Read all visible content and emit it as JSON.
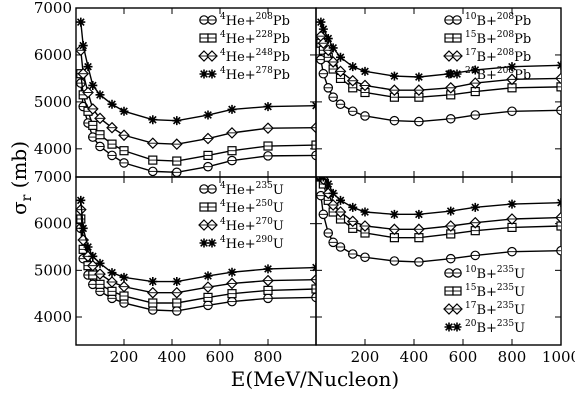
{
  "chart_data": [
    {
      "panel": "top-left",
      "type": "line",
      "x": [
        20,
        30,
        50,
        70,
        100,
        150,
        200,
        320,
        420,
        550,
        650,
        800,
        1000
      ],
      "xlim": [
        0,
        1000
      ],
      "ylim": [
        3400,
        7000
      ],
      "yticks": [
        "4000",
        "5000",
        "6000",
        "7000"
      ],
      "legend_position": "top-right",
      "series": [
        {
          "name": "4He+208Pb",
          "base": "He+",
          "pre": "4",
          "post": "208",
          "elem": "Pb",
          "marker": "circle",
          "values": [
            5400,
            4900,
            4550,
            4250,
            4050,
            3860,
            3700,
            3520,
            3500,
            3620,
            3750,
            3850,
            3860
          ]
        },
        {
          "name": "4He+228Pb",
          "base": "He+",
          "pre": "4",
          "post": "228",
          "elem": "Pb",
          "marker": "square",
          "values": [
            5600,
            5150,
            4800,
            4500,
            4300,
            4100,
            3960,
            3760,
            3740,
            3860,
            3960,
            4060,
            4080
          ]
        },
        {
          "name": "4He+248Pb",
          "base": "He+",
          "pre": "4",
          "post": "248",
          "elem": "Pb",
          "marker": "diamond",
          "values": [
            6100,
            5600,
            5200,
            4850,
            4650,
            4450,
            4290,
            4120,
            4100,
            4220,
            4340,
            4440,
            4450
          ]
        },
        {
          "name": "4He+278Pb",
          "base": "He+",
          "pre": "4",
          "post": "278",
          "elem": "Pb",
          "marker": "star",
          "values": [
            6700,
            6200,
            5750,
            5350,
            5150,
            4950,
            4800,
            4620,
            4600,
            4720,
            4840,
            4900,
            4920
          ]
        }
      ]
    },
    {
      "panel": "top-right",
      "type": "line",
      "x": [
        20,
        30,
        50,
        70,
        100,
        150,
        200,
        320,
        420,
        550,
        650,
        800,
        1000
      ],
      "xlim": [
        0,
        1000
      ],
      "ylim": [
        3400,
        7000
      ],
      "yticks": [
        "4000",
        "5000",
        "6000",
        "7000"
      ],
      "legend_position": "top-right",
      "series": [
        {
          "name": "10B+208Pb",
          "base": "B+",
          "pre": "10",
          "post": "208",
          "elem": "Pb",
          "marker": "circle",
          "values": [
            5900,
            5600,
            5300,
            5100,
            4950,
            4800,
            4700,
            4600,
            4580,
            4640,
            4720,
            4800,
            4820
          ]
        },
        {
          "name": "15B+208Pb",
          "base": "B+",
          "pre": "15",
          "post": "208",
          "elem": "Pb",
          "marker": "square",
          "values": [
            6250,
            6100,
            5950,
            5700,
            5500,
            5300,
            5200,
            5100,
            5100,
            5150,
            5220,
            5300,
            5320
          ]
        },
        {
          "name": "17B+208Pb",
          "base": "B+",
          "pre": "17",
          "post": "208",
          "elem": "Pb",
          "marker": "diamond",
          "values": [
            6400,
            6250,
            6100,
            5850,
            5650,
            5450,
            5350,
            5250,
            5250,
            5300,
            5400,
            5480,
            5500
          ]
        },
        {
          "name": "20B+208Pb",
          "base": "B+",
          "pre": "20",
          "post": "208",
          "elem": "Pb",
          "marker": "star",
          "values": [
            6700,
            6550,
            6350,
            6150,
            5950,
            5750,
            5650,
            5550,
            5530,
            5600,
            5680,
            5750,
            5780
          ]
        }
      ]
    },
    {
      "panel": "bottom-left",
      "type": "line",
      "x": [
        20,
        30,
        50,
        70,
        100,
        150,
        200,
        320,
        420,
        550,
        650,
        800,
        1000
      ],
      "xlim": [
        0,
        1000
      ],
      "ylim": [
        3400,
        7000
      ],
      "xticks": [
        "200",
        "400",
        "600",
        "800"
      ],
      "yticks": [
        "4000",
        "5000",
        "6000",
        "7000"
      ],
      "legend_position": "top-right",
      "series": [
        {
          "name": "4He+235U",
          "base": "He+",
          "pre": "4",
          "post": "235",
          "elem": "U",
          "marker": "circle",
          "values": [
            5900,
            5250,
            4900,
            4700,
            4550,
            4400,
            4300,
            4150,
            4130,
            4250,
            4330,
            4400,
            4420
          ]
        },
        {
          "name": "4He+250U",
          "base": "He+",
          "pre": "4",
          "post": "250",
          "elem": "U",
          "marker": "square",
          "values": [
            6100,
            5450,
            5100,
            4900,
            4700,
            4550,
            4450,
            4300,
            4300,
            4420,
            4500,
            4570,
            4600
          ]
        },
        {
          "name": "4He+270U",
          "base": "He+",
          "pre": "4",
          "post": "270",
          "elem": "U",
          "marker": "diamond",
          "values": [
            6300,
            5650,
            5300,
            5100,
            4920,
            4750,
            4650,
            4520,
            4520,
            4640,
            4720,
            4780,
            4800
          ]
        },
        {
          "name": "4He+290U",
          "base": "He+",
          "pre": "4",
          "post": "290",
          "elem": "U",
          "marker": "star",
          "values": [
            6500,
            5900,
            5500,
            5300,
            5150,
            4950,
            4850,
            4760,
            4760,
            4880,
            4960,
            5030,
            5060
          ]
        }
      ]
    },
    {
      "panel": "bottom-right",
      "type": "line",
      "x": [
        20,
        30,
        50,
        70,
        100,
        150,
        200,
        320,
        420,
        550,
        650,
        800,
        1000
      ],
      "xlim": [
        0,
        1000
      ],
      "ylim": [
        3400,
        7000
      ],
      "xticks": [
        "200",
        "400",
        "600",
        "800",
        "1000"
      ],
      "yticks": [
        "4000",
        "5000",
        "6000",
        "7000"
      ],
      "legend_position": "bottom-right",
      "series": [
        {
          "name": "10B+235U",
          "base": "B+",
          "pre": "10",
          "post": "235",
          "elem": "U",
          "marker": "circle",
          "values": [
            6600,
            6200,
            5800,
            5600,
            5500,
            5350,
            5280,
            5200,
            5180,
            5250,
            5320,
            5400,
            5420
          ]
        },
        {
          "name": "15B+235U",
          "base": "B+",
          "pre": "15",
          "post": "235",
          "elem": "U",
          "marker": "square",
          "values": [
            7000,
            6850,
            6500,
            6250,
            6100,
            5900,
            5800,
            5700,
            5700,
            5780,
            5850,
            5920,
            5950
          ]
        },
        {
          "name": "17B+235U",
          "base": "B+",
          "pre": "17",
          "post": "235",
          "elem": "U",
          "marker": "diamond",
          "values": [
            7000,
            6950,
            6650,
            6400,
            6250,
            6050,
            5950,
            5880,
            5880,
            5950,
            6020,
            6100,
            6130
          ]
        },
        {
          "name": "20B+235U",
          "base": "B+",
          "pre": "20",
          "post": "235",
          "elem": "U",
          "marker": "star",
          "values": [
            7000,
            7000,
            6850,
            6650,
            6500,
            6350,
            6250,
            6200,
            6200,
            6270,
            6350,
            6420,
            6450
          ]
        }
      ]
    }
  ],
  "labels": {
    "ylabel_main": "σ",
    "ylabel_sub": "r",
    "ylabel_unit": " (mb)",
    "xlabel": "E(MeV/Nucleon)"
  }
}
